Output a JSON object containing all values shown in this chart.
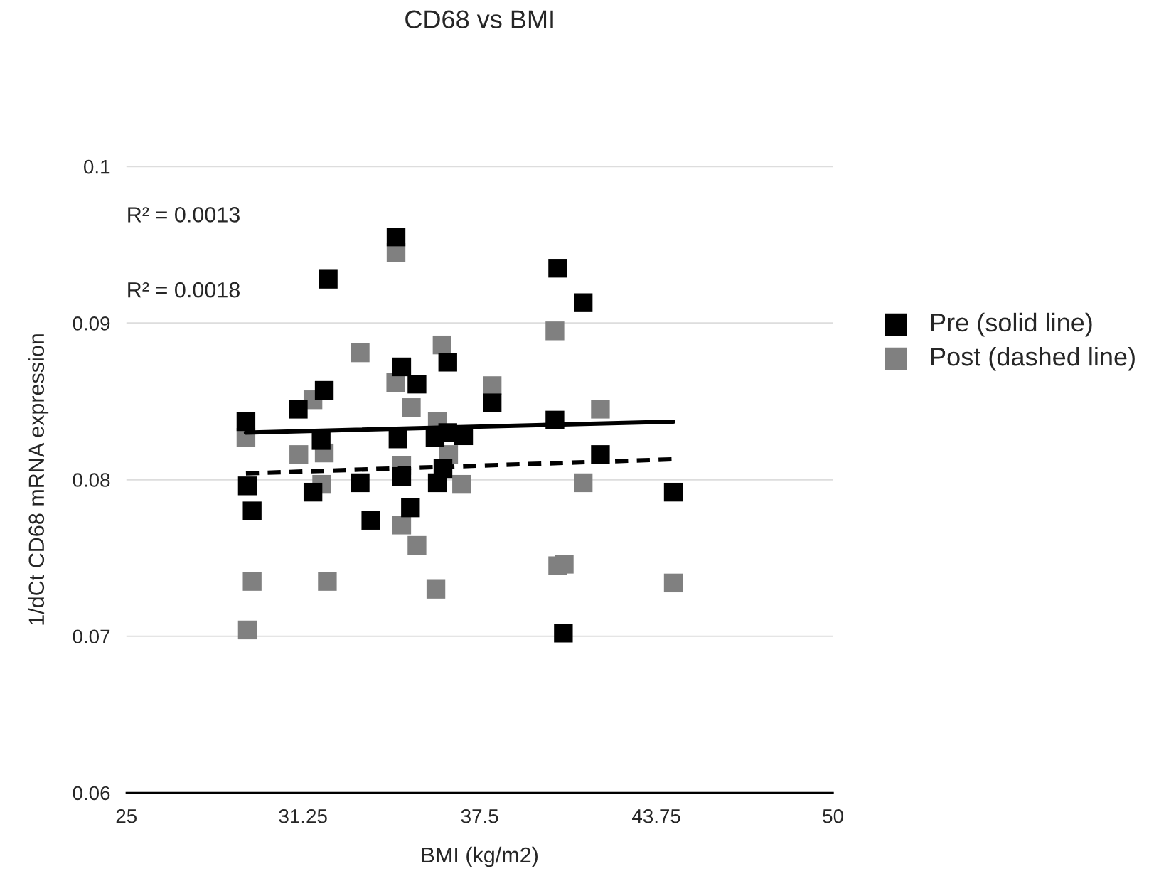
{
  "chart_data": {
    "type": "scatter",
    "title": "CD68 vs BMI",
    "xlabel": "BMI (kg/m2)",
    "ylabel": "1/dCt CD68 mRNA expression",
    "xlim": [
      25,
      50
    ],
    "xticks": [
      25,
      31.25,
      37.5,
      43.75,
      50
    ],
    "ylim": [
      0.06,
      0.1
    ],
    "yticks": [
      0.06,
      0.07,
      0.08,
      0.09,
      0.1
    ],
    "grid": "y",
    "legend": "right",
    "annotations": [
      "R² = 0.0013",
      "R² = 0.0018"
    ],
    "series": [
      {
        "name": "Pre (solid line)",
        "marker": "square",
        "color": "#000000",
        "x": [
          29.23,
          32.14,
          34.54,
          34.74,
          36.37,
          35.28,
          32.0,
          31.08,
          31.89,
          34.61,
          35.92,
          36.37,
          36.93,
          29.28,
          31.6,
          33.27,
          34.74,
          36.0,
          36.2,
          29.45,
          33.65,
          35.05,
          37.94,
          40.26,
          41.16,
          40.16,
          41.77,
          44.35,
          40.46
        ],
        "values": [
          0.0837,
          0.0928,
          0.0955,
          0.0872,
          0.0875,
          0.0861,
          0.0857,
          0.0845,
          0.0825,
          0.0826,
          0.0827,
          0.083,
          0.0828,
          0.0796,
          0.0792,
          0.0798,
          0.0802,
          0.0798,
          0.0807,
          0.078,
          0.0774,
          0.0782,
          0.0849,
          0.0935,
          0.0913,
          0.0838,
          0.0816,
          0.0792,
          0.0702
        ]
      },
      {
        "name": "Post (dashed line)",
        "marker": "square",
        "color": "#808080",
        "x": [
          34.54,
          36.17,
          33.27,
          34.53,
          35.08,
          31.6,
          29.23,
          36.0,
          31.1,
          32.0,
          36.4,
          34.74,
          31.91,
          36.86,
          34.74,
          35.28,
          29.45,
          32.11,
          35.95,
          29.28,
          37.94,
          40.16,
          41.77,
          41.16,
          40.26,
          40.49,
          44.35
        ],
        "values": [
          0.0945,
          0.0886,
          0.0881,
          0.0862,
          0.0846,
          0.0851,
          0.0827,
          0.0837,
          0.0816,
          0.0817,
          0.0816,
          0.0809,
          0.0797,
          0.0797,
          0.0771,
          0.0758,
          0.0735,
          0.0735,
          0.073,
          0.0704,
          0.086,
          0.0895,
          0.0845,
          0.0798,
          0.0745,
          0.0746,
          0.0734
        ]
      },
      {
        "type": "line",
        "marker": "none",
        "line_style": "solid",
        "color": "#000000",
        "x": [
          29.23,
          44.35
        ],
        "values": [
          0.083,
          0.0837
        ]
      },
      {
        "type": "line",
        "marker": "none",
        "line_style": "dashed",
        "color": "#000000",
        "x": [
          29.23,
          44.35
        ],
        "values": [
          0.0804,
          0.0813
        ]
      }
    ]
  }
}
